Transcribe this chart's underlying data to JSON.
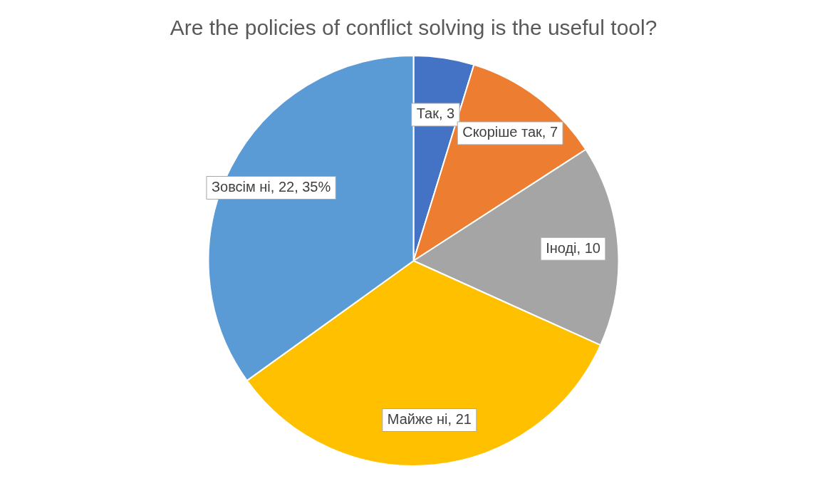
{
  "chart_data": {
    "type": "pie",
    "title": "Are the policies of conflict solving is the useful tool?",
    "categories": [
      "Так, 3",
      "Скоріше так, 7",
      "Іноді, 10",
      "Майже ні, 21",
      "Зовсім ні, 22, 35%"
    ],
    "values": [
      3,
      7,
      10,
      21,
      22
    ],
    "colors": [
      "#4472c4",
      "#ed7d31",
      "#a5a5a5",
      "#ffc000",
      "#5b9bd5"
    ],
    "legend": false
  }
}
